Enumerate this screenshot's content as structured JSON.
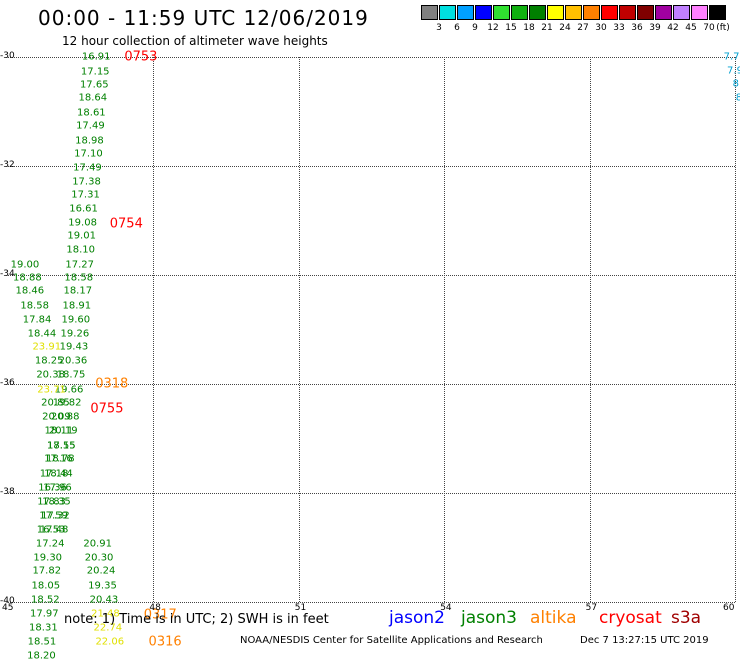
{
  "header": {
    "title": "00:00 - 11:59 UTC 12/06/2019",
    "subtitle": "12 hour collection of altimeter wave heights"
  },
  "legend": {
    "unit": "(ft)",
    "items": [
      {
        "label": "3",
        "color": "#808080"
      },
      {
        "label": "6",
        "color": "#00e0e0"
      },
      {
        "label": "9",
        "color": "#00a0ff"
      },
      {
        "label": "12",
        "color": "#0000ff"
      },
      {
        "label": "15",
        "color": "#30e030"
      },
      {
        "label": "18",
        "color": "#10b010"
      },
      {
        "label": "21",
        "color": "#008000"
      },
      {
        "label": "24",
        "color": "#ffff00"
      },
      {
        "label": "27",
        "color": "#ffc000"
      },
      {
        "label": "30",
        "color": "#ff8000"
      },
      {
        "label": "33",
        "color": "#ff0000"
      },
      {
        "label": "36",
        "color": "#c00000"
      },
      {
        "label": "39",
        "color": "#800000"
      },
      {
        "label": "42",
        "color": "#a000a0"
      },
      {
        "label": "45",
        "color": "#c080ff"
      },
      {
        "label": "70",
        "color": "#ff80ff"
      },
      {
        "label": "",
        "color": "#000000"
      }
    ]
  },
  "map": {
    "lat_range": [
      -40,
      -30
    ],
    "lon_range": [
      45,
      60
    ],
    "lat_labels": [
      "-30",
      "-32",
      "-34",
      "-36",
      "-38",
      "-40"
    ],
    "lon_labels": [
      "45",
      "48",
      "51",
      "54",
      "57",
      "60"
    ],
    "colors": {
      "green": "#008000",
      "yellow": "#e0e000",
      "orange": "#ff8000",
      "red": "#ff0000",
      "cyan": "#00a0d0"
    },
    "swh_points": [
      {
        "lat": -30.0,
        "lon": 46.82,
        "v": "16.91",
        "c": "green"
      },
      {
        "lat": -30.27,
        "lon": 46.8,
        "v": "17.15",
        "c": "green"
      },
      {
        "lat": -30.51,
        "lon": 46.78,
        "v": "17.65",
        "c": "green"
      },
      {
        "lat": -30.76,
        "lon": 46.75,
        "v": "18.64",
        "c": "green"
      },
      {
        "lat": -31.02,
        "lon": 46.72,
        "v": "18.61",
        "c": "green"
      },
      {
        "lat": -31.27,
        "lon": 46.7,
        "v": "17.49",
        "c": "green"
      },
      {
        "lat": -31.54,
        "lon": 46.68,
        "v": "18.98",
        "c": "green"
      },
      {
        "lat": -31.78,
        "lon": 46.66,
        "v": "17.10",
        "c": "green"
      },
      {
        "lat": -32.04,
        "lon": 46.64,
        "v": "17.49",
        "c": "green"
      },
      {
        "lat": -32.3,
        "lon": 46.62,
        "v": "17.38",
        "c": "green"
      },
      {
        "lat": -32.53,
        "lon": 46.6,
        "v": "17.31",
        "c": "green"
      },
      {
        "lat": -32.79,
        "lon": 46.56,
        "v": "16.61",
        "c": "green"
      },
      {
        "lat": -33.05,
        "lon": 46.54,
        "v": "19.08",
        "c": "green"
      },
      {
        "lat": -33.29,
        "lon": 46.52,
        "v": "19.01",
        "c": "green"
      },
      {
        "lat": -33.55,
        "lon": 46.5,
        "v": "18.10",
        "c": "green"
      },
      {
        "lat": -33.81,
        "lon": 46.48,
        "v": "17.27",
        "c": "green"
      },
      {
        "lat": -34.06,
        "lon": 46.46,
        "v": "18.58",
        "c": "green"
      },
      {
        "lat": -34.3,
        "lon": 46.44,
        "v": "18.17",
        "c": "green"
      },
      {
        "lat": -34.57,
        "lon": 46.42,
        "v": "18.91",
        "c": "green"
      },
      {
        "lat": -34.82,
        "lon": 46.4,
        "v": "19.60",
        "c": "green"
      },
      {
        "lat": -35.09,
        "lon": 46.38,
        "v": "19.26",
        "c": "green"
      },
      {
        "lat": -35.33,
        "lon": 46.36,
        "v": "19.43",
        "c": "green"
      },
      {
        "lat": -35.58,
        "lon": 46.34,
        "v": "20.36",
        "c": "green"
      },
      {
        "lat": -35.84,
        "lon": 46.3,
        "v": "18.75",
        "c": "green"
      },
      {
        "lat": -36.11,
        "lon": 46.26,
        "v": "19.66",
        "c": "green"
      },
      {
        "lat": -36.35,
        "lon": 46.22,
        "v": "19.82",
        "c": "green"
      },
      {
        "lat": -36.61,
        "lon": 46.18,
        "v": "20.88",
        "c": "green"
      },
      {
        "lat": -36.87,
        "lon": 46.14,
        "v": "20.19",
        "c": "green"
      },
      {
        "lat": -37.13,
        "lon": 46.1,
        "v": "18.15",
        "c": "green"
      },
      {
        "lat": -37.38,
        "lon": 46.08,
        "v": "18.78",
        "c": "green"
      },
      {
        "lat": -37.65,
        "lon": 46.04,
        "v": "18.44",
        "c": "green"
      },
      {
        "lat": -37.91,
        "lon": 46.02,
        "v": "17.96",
        "c": "green"
      },
      {
        "lat": -38.17,
        "lon": 46.0,
        "v": "18.35",
        "c": "green"
      },
      {
        "lat": -38.42,
        "lon": 45.98,
        "v": "17.32",
        "c": "green"
      },
      {
        "lat": -38.67,
        "lon": 45.95,
        "v": "17.48",
        "c": "green"
      },
      {
        "lat": -38.93,
        "lon": 46.85,
        "v": "20.91",
        "c": "green"
      },
      {
        "lat": -39.19,
        "lon": 46.88,
        "v": "20.30",
        "c": "green"
      },
      {
        "lat": -39.44,
        "lon": 46.92,
        "v": "20.24",
        "c": "green"
      },
      {
        "lat": -39.71,
        "lon": 46.95,
        "v": "19.35",
        "c": "green"
      },
      {
        "lat": -39.97,
        "lon": 46.98,
        "v": "20.43",
        "c": "green"
      },
      {
        "lat": -40.22,
        "lon": 47.01,
        "v": "21.48",
        "c": "yellow"
      },
      {
        "lat": -40.48,
        "lon": 47.06,
        "v": "22.74",
        "c": "yellow"
      },
      {
        "lat": -40.73,
        "lon": 47.1,
        "v": "22.06",
        "c": "yellow"
      },
      {
        "lat": -33.81,
        "lon": 45.35,
        "v": "19.00",
        "c": "green"
      },
      {
        "lat": -34.06,
        "lon": 45.4,
        "v": "18.88",
        "c": "green"
      },
      {
        "lat": -34.3,
        "lon": 45.45,
        "v": "18.46",
        "c": "green"
      },
      {
        "lat": -34.57,
        "lon": 45.55,
        "v": "18.58",
        "c": "green"
      },
      {
        "lat": -34.82,
        "lon": 45.6,
        "v": "17.84",
        "c": "green"
      },
      {
        "lat": -35.09,
        "lon": 45.7,
        "v": "18.44",
        "c": "green"
      },
      {
        "lat": -35.33,
        "lon": 45.8,
        "v": "23.91",
        "c": "yellow"
      },
      {
        "lat": -35.58,
        "lon": 45.85,
        "v": "18.25",
        "c": "green"
      },
      {
        "lat": -35.84,
        "lon": 45.88,
        "v": "20.38",
        "c": "green"
      },
      {
        "lat": -36.11,
        "lon": 45.9,
        "v": "23.71",
        "c": "yellow"
      },
      {
        "lat": -36.35,
        "lon": 45.98,
        "v": "20.85",
        "c": "green"
      },
      {
        "lat": -36.61,
        "lon": 46.0,
        "v": "20.09",
        "c": "green"
      },
      {
        "lat": -36.87,
        "lon": 46.05,
        "v": "18.11",
        "c": "green"
      },
      {
        "lat": -37.13,
        "lon": 46.1,
        "v": "17.55",
        "c": "green"
      },
      {
        "lat": -37.38,
        "lon": 46.04,
        "v": "17.16",
        "c": "green"
      },
      {
        "lat": -37.65,
        "lon": 45.95,
        "v": "17.18",
        "c": "green"
      },
      {
        "lat": -37.91,
        "lon": 45.92,
        "v": "16.36",
        "c": "green"
      },
      {
        "lat": -38.17,
        "lon": 45.9,
        "v": "17.83",
        "c": "green"
      },
      {
        "lat": -38.42,
        "lon": 45.94,
        "v": "17.59",
        "c": "green"
      },
      {
        "lat": -38.67,
        "lon": 45.89,
        "v": "16.53",
        "c": "green"
      },
      {
        "lat": -38.93,
        "lon": 45.87,
        "v": "17.24",
        "c": "green"
      },
      {
        "lat": -39.19,
        "lon": 45.82,
        "v": "19.30",
        "c": "green"
      },
      {
        "lat": -39.44,
        "lon": 45.8,
        "v": "17.82",
        "c": "green"
      },
      {
        "lat": -39.71,
        "lon": 45.78,
        "v": "18.05",
        "c": "green"
      },
      {
        "lat": -39.97,
        "lon": 45.77,
        "v": "18.52",
        "c": "green"
      },
      {
        "lat": -40.22,
        "lon": 45.75,
        "v": "17.97",
        "c": "green"
      },
      {
        "lat": -40.48,
        "lon": 45.73,
        "v": "18.31",
        "c": "green"
      },
      {
        "lat": -40.73,
        "lon": 45.7,
        "v": "18.51",
        "c": "green"
      },
      {
        "lat": -40.99,
        "lon": 45.69,
        "v": "18.20",
        "c": "green"
      },
      {
        "lat": -30.0,
        "lon": 59.93,
        "v": "7.7",
        "c": "cyan"
      },
      {
        "lat": -30.25,
        "lon": 60.0,
        "v": "7.9",
        "c": "cyan"
      },
      {
        "lat": -30.5,
        "lon": 60.05,
        "v": "8.",
        "c": "cyan"
      },
      {
        "lat": -30.75,
        "lon": 60.08,
        "v": "8",
        "c": "cyan"
      }
    ],
    "time_labels": [
      {
        "lat": -30.0,
        "lon": 47.4,
        "v": "0753",
        "c": "red"
      },
      {
        "lat": -33.07,
        "lon": 47.1,
        "v": "0754",
        "c": "red"
      },
      {
        "lat": -36.0,
        "lon": 46.8,
        "v": "0318",
        "c": "orange"
      },
      {
        "lat": -36.45,
        "lon": 46.7,
        "v": "0755",
        "c": "red"
      },
      {
        "lat": -40.23,
        "lon": 47.8,
        "v": "0317",
        "c": "orange"
      },
      {
        "lat": -40.73,
        "lon": 47.9,
        "v": "0316",
        "c": "orange"
      }
    ]
  },
  "footer": {
    "note": "note: 1) Time is in UTC; 2) SWH is in feet",
    "satellites": [
      {
        "name": "jason2",
        "color": "#0000ff"
      },
      {
        "name": "jason3",
        "color": "#008000"
      },
      {
        "name": "altika",
        "color": "#ff8000"
      },
      {
        "name": "cryosat",
        "color": "#ff0000"
      },
      {
        "name": "s3a",
        "color": "#a00000"
      }
    ],
    "credit": "NOAA/NESDIS Center for Satellite Applications and Research",
    "timestamp": "Dec  7 13:27:15 UTC 2019"
  }
}
